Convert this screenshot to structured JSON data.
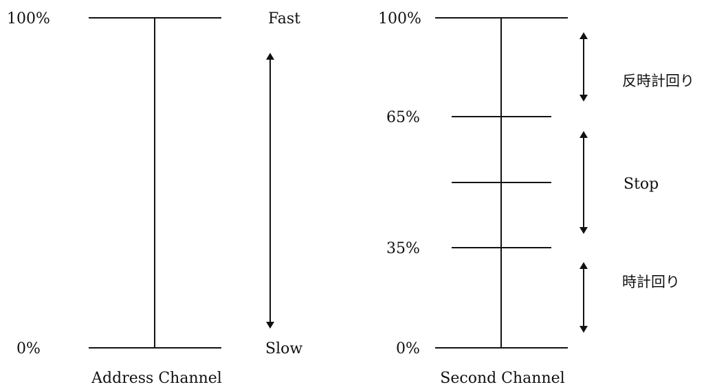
{
  "left_diagram": {
    "caption": "Address Channel",
    "top_label": "100%",
    "bottom_label": "0%",
    "fast_label": "Fast",
    "slow_label": "Slow"
  },
  "right_diagram": {
    "caption": "Second Channel",
    "label_100": "100%",
    "label_65": "65%",
    "label_35": "35%",
    "label_0": "0%",
    "zone_ccw": "反時計回り",
    "zone_stop": "Stop",
    "zone_cw": "時計回り"
  }
}
